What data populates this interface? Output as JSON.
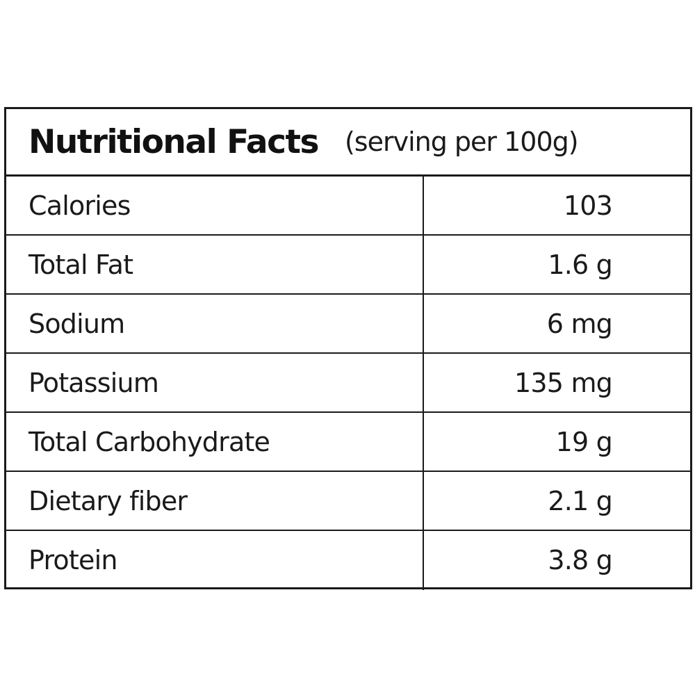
{
  "header": {
    "title": "Nutritional Facts",
    "serving": "(serving per 100g)"
  },
  "rows": [
    {
      "label": "Calories",
      "value": "103"
    },
    {
      "label": "Total Fat",
      "value": "1.6 g"
    },
    {
      "label": "Sodium",
      "value": "6 mg"
    },
    {
      "label": "Potassium",
      "value": "135 mg"
    },
    {
      "label": "Total Carbohydrate",
      "value": "19 g"
    },
    {
      "label": "Dietary fiber",
      "value": "2.1 g"
    },
    {
      "label": "Protein",
      "value": "3.8 g"
    }
  ]
}
